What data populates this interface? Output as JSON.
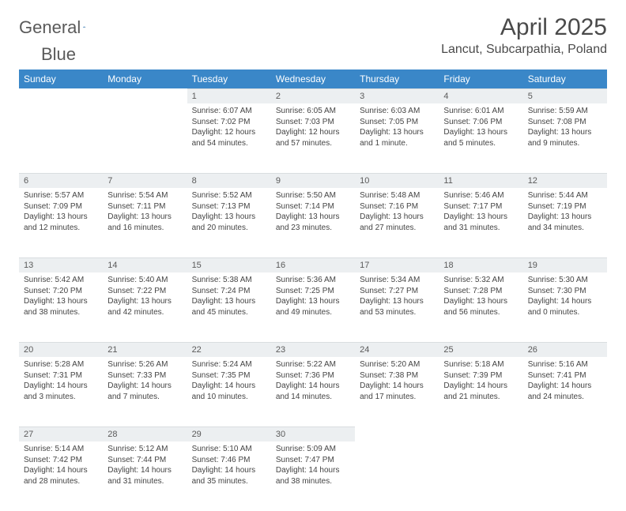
{
  "brand": {
    "name_a": "General",
    "name_b": "Blue"
  },
  "title": "April 2025",
  "location": "Lancut, Subcarpathia, Poland",
  "colors": {
    "header_bg": "#3a87c8",
    "daynum_bg": "#eceff1",
    "text": "#444444",
    "brand_gray": "#5a5a5a",
    "brand_blue": "#2f7abf"
  },
  "dayNames": [
    "Sunday",
    "Monday",
    "Tuesday",
    "Wednesday",
    "Thursday",
    "Friday",
    "Saturday"
  ],
  "weeks": [
    [
      null,
      null,
      {
        "n": "1",
        "sunrise": "Sunrise: 6:07 AM",
        "sunset": "Sunset: 7:02 PM",
        "daylight": "Daylight: 12 hours and 54 minutes."
      },
      {
        "n": "2",
        "sunrise": "Sunrise: 6:05 AM",
        "sunset": "Sunset: 7:03 PM",
        "daylight": "Daylight: 12 hours and 57 minutes."
      },
      {
        "n": "3",
        "sunrise": "Sunrise: 6:03 AM",
        "sunset": "Sunset: 7:05 PM",
        "daylight": "Daylight: 13 hours and 1 minute."
      },
      {
        "n": "4",
        "sunrise": "Sunrise: 6:01 AM",
        "sunset": "Sunset: 7:06 PM",
        "daylight": "Daylight: 13 hours and 5 minutes."
      },
      {
        "n": "5",
        "sunrise": "Sunrise: 5:59 AM",
        "sunset": "Sunset: 7:08 PM",
        "daylight": "Daylight: 13 hours and 9 minutes."
      }
    ],
    [
      {
        "n": "6",
        "sunrise": "Sunrise: 5:57 AM",
        "sunset": "Sunset: 7:09 PM",
        "daylight": "Daylight: 13 hours and 12 minutes."
      },
      {
        "n": "7",
        "sunrise": "Sunrise: 5:54 AM",
        "sunset": "Sunset: 7:11 PM",
        "daylight": "Daylight: 13 hours and 16 minutes."
      },
      {
        "n": "8",
        "sunrise": "Sunrise: 5:52 AM",
        "sunset": "Sunset: 7:13 PM",
        "daylight": "Daylight: 13 hours and 20 minutes."
      },
      {
        "n": "9",
        "sunrise": "Sunrise: 5:50 AM",
        "sunset": "Sunset: 7:14 PM",
        "daylight": "Daylight: 13 hours and 23 minutes."
      },
      {
        "n": "10",
        "sunrise": "Sunrise: 5:48 AM",
        "sunset": "Sunset: 7:16 PM",
        "daylight": "Daylight: 13 hours and 27 minutes."
      },
      {
        "n": "11",
        "sunrise": "Sunrise: 5:46 AM",
        "sunset": "Sunset: 7:17 PM",
        "daylight": "Daylight: 13 hours and 31 minutes."
      },
      {
        "n": "12",
        "sunrise": "Sunrise: 5:44 AM",
        "sunset": "Sunset: 7:19 PM",
        "daylight": "Daylight: 13 hours and 34 minutes."
      }
    ],
    [
      {
        "n": "13",
        "sunrise": "Sunrise: 5:42 AM",
        "sunset": "Sunset: 7:20 PM",
        "daylight": "Daylight: 13 hours and 38 minutes."
      },
      {
        "n": "14",
        "sunrise": "Sunrise: 5:40 AM",
        "sunset": "Sunset: 7:22 PM",
        "daylight": "Daylight: 13 hours and 42 minutes."
      },
      {
        "n": "15",
        "sunrise": "Sunrise: 5:38 AM",
        "sunset": "Sunset: 7:24 PM",
        "daylight": "Daylight: 13 hours and 45 minutes."
      },
      {
        "n": "16",
        "sunrise": "Sunrise: 5:36 AM",
        "sunset": "Sunset: 7:25 PM",
        "daylight": "Daylight: 13 hours and 49 minutes."
      },
      {
        "n": "17",
        "sunrise": "Sunrise: 5:34 AM",
        "sunset": "Sunset: 7:27 PM",
        "daylight": "Daylight: 13 hours and 53 minutes."
      },
      {
        "n": "18",
        "sunrise": "Sunrise: 5:32 AM",
        "sunset": "Sunset: 7:28 PM",
        "daylight": "Daylight: 13 hours and 56 minutes."
      },
      {
        "n": "19",
        "sunrise": "Sunrise: 5:30 AM",
        "sunset": "Sunset: 7:30 PM",
        "daylight": "Daylight: 14 hours and 0 minutes."
      }
    ],
    [
      {
        "n": "20",
        "sunrise": "Sunrise: 5:28 AM",
        "sunset": "Sunset: 7:31 PM",
        "daylight": "Daylight: 14 hours and 3 minutes."
      },
      {
        "n": "21",
        "sunrise": "Sunrise: 5:26 AM",
        "sunset": "Sunset: 7:33 PM",
        "daylight": "Daylight: 14 hours and 7 minutes."
      },
      {
        "n": "22",
        "sunrise": "Sunrise: 5:24 AM",
        "sunset": "Sunset: 7:35 PM",
        "daylight": "Daylight: 14 hours and 10 minutes."
      },
      {
        "n": "23",
        "sunrise": "Sunrise: 5:22 AM",
        "sunset": "Sunset: 7:36 PM",
        "daylight": "Daylight: 14 hours and 14 minutes."
      },
      {
        "n": "24",
        "sunrise": "Sunrise: 5:20 AM",
        "sunset": "Sunset: 7:38 PM",
        "daylight": "Daylight: 14 hours and 17 minutes."
      },
      {
        "n": "25",
        "sunrise": "Sunrise: 5:18 AM",
        "sunset": "Sunset: 7:39 PM",
        "daylight": "Daylight: 14 hours and 21 minutes."
      },
      {
        "n": "26",
        "sunrise": "Sunrise: 5:16 AM",
        "sunset": "Sunset: 7:41 PM",
        "daylight": "Daylight: 14 hours and 24 minutes."
      }
    ],
    [
      {
        "n": "27",
        "sunrise": "Sunrise: 5:14 AM",
        "sunset": "Sunset: 7:42 PM",
        "daylight": "Daylight: 14 hours and 28 minutes."
      },
      {
        "n": "28",
        "sunrise": "Sunrise: 5:12 AM",
        "sunset": "Sunset: 7:44 PM",
        "daylight": "Daylight: 14 hours and 31 minutes."
      },
      {
        "n": "29",
        "sunrise": "Sunrise: 5:10 AM",
        "sunset": "Sunset: 7:46 PM",
        "daylight": "Daylight: 14 hours and 35 minutes."
      },
      {
        "n": "30",
        "sunrise": "Sunrise: 5:09 AM",
        "sunset": "Sunset: 7:47 PM",
        "daylight": "Daylight: 14 hours and 38 minutes."
      },
      null,
      null,
      null
    ]
  ]
}
